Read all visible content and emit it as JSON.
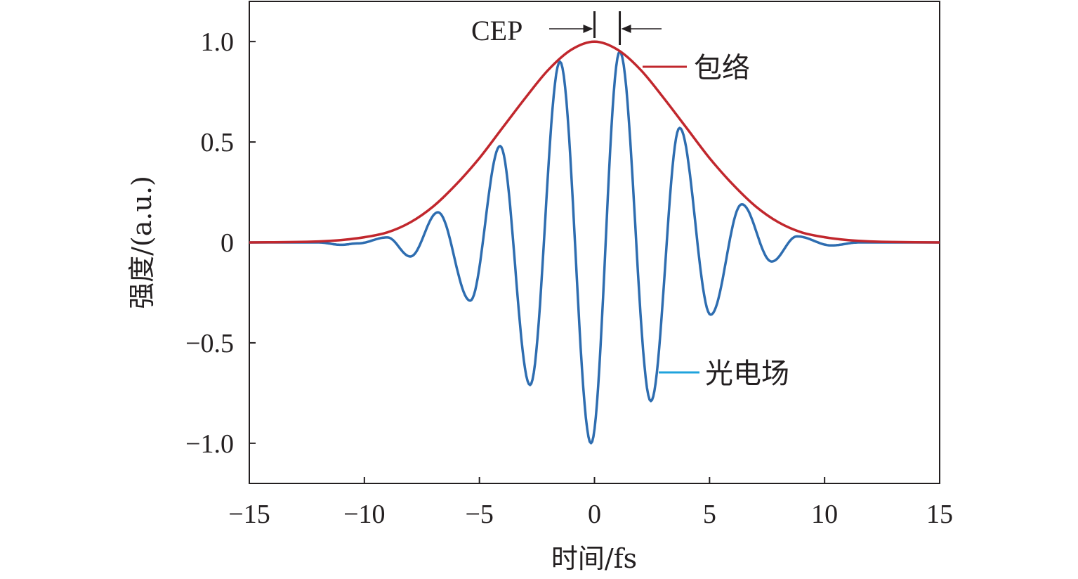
{
  "chart_data": {
    "type": "line",
    "title": "",
    "xlabel": "时间/fs",
    "ylabel": "强度/(a.u.)",
    "xlim": [
      -15,
      15
    ],
    "ylim": [
      -1.2,
      1.2
    ],
    "xticks": [
      -15,
      -10,
      -5,
      0,
      5,
      10,
      15
    ],
    "xtick_labels": [
      "−15",
      "−10",
      "−5",
      "0",
      "5",
      "10",
      "15"
    ],
    "yticks": [
      1.0,
      0.5,
      0,
      -0.5,
      -1.0
    ],
    "ytick_labels": [
      "1.0",
      "0.5",
      "0",
      "−0.5",
      "−1.0"
    ],
    "grid": false,
    "colors": {
      "envelope": "#c1272d",
      "field": "#2e6db0",
      "field_leader": "#1fa3dc",
      "axis": "#231f20"
    },
    "series": [
      {
        "name": "包络",
        "x": [
          -15,
          -13,
          -12,
          -11,
          -10,
          -9,
          -8,
          -7,
          -6,
          -5,
          -4,
          -3,
          -2,
          -1,
          0,
          1,
          2,
          3,
          4,
          5,
          6,
          7,
          8,
          9,
          10,
          11,
          12,
          13,
          15
        ],
        "y": [
          0.0,
          0.002,
          0.005,
          0.012,
          0.026,
          0.05,
          0.1,
          0.18,
          0.29,
          0.42,
          0.57,
          0.72,
          0.86,
          0.96,
          1.0,
          0.96,
          0.86,
          0.72,
          0.57,
          0.42,
          0.29,
          0.18,
          0.1,
          0.05,
          0.026,
          0.012,
          0.005,
          0.002,
          0.0
        ]
      },
      {
        "name": "光电场",
        "x": [
          -12,
          -11,
          -10.3,
          -9.0,
          -8.0,
          -6.8,
          -5.4,
          -4.1,
          -2.8,
          -1.5,
          -0.15,
          1.1,
          2.45,
          3.7,
          5.05,
          6.4,
          7.7,
          8.8,
          10.3,
          11.5
        ],
        "y": [
          0.0,
          -0.012,
          -0.005,
          0.025,
          -0.07,
          0.15,
          -0.29,
          0.48,
          -0.71,
          0.9,
          -1.0,
          0.95,
          -0.79,
          0.57,
          -0.36,
          0.19,
          -0.095,
          0.03,
          -0.015,
          0.0
        ]
      }
    ],
    "annotations": {
      "cep_label": "CEP",
      "envelope_label": "包络",
      "field_label": "光电场"
    }
  }
}
